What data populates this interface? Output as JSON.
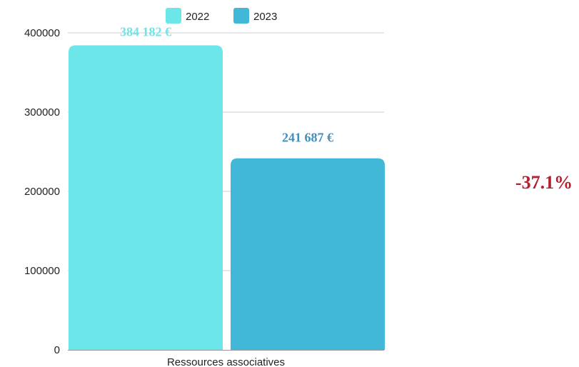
{
  "chart_data": {
    "type": "bar",
    "categories": [
      "Ressources associatives"
    ],
    "series": [
      {
        "name": "2022",
        "values": [
          384182
        ],
        "color": "#6ce6e8",
        "label": "384 182 €"
      },
      {
        "name": "2023",
        "values": [
          241687
        ],
        "color": "#41b8d8",
        "label": "241 687 €"
      }
    ],
    "ylim": [
      0,
      400000
    ],
    "yticks": [
      0,
      100000,
      200000,
      300000,
      400000
    ],
    "grid": true,
    "legend_position": "top",
    "annotation": {
      "text": "-37.1%",
      "color": "#b5202e"
    },
    "label_colors": [
      "#6ce6e8",
      "#3f8fbf"
    ]
  }
}
